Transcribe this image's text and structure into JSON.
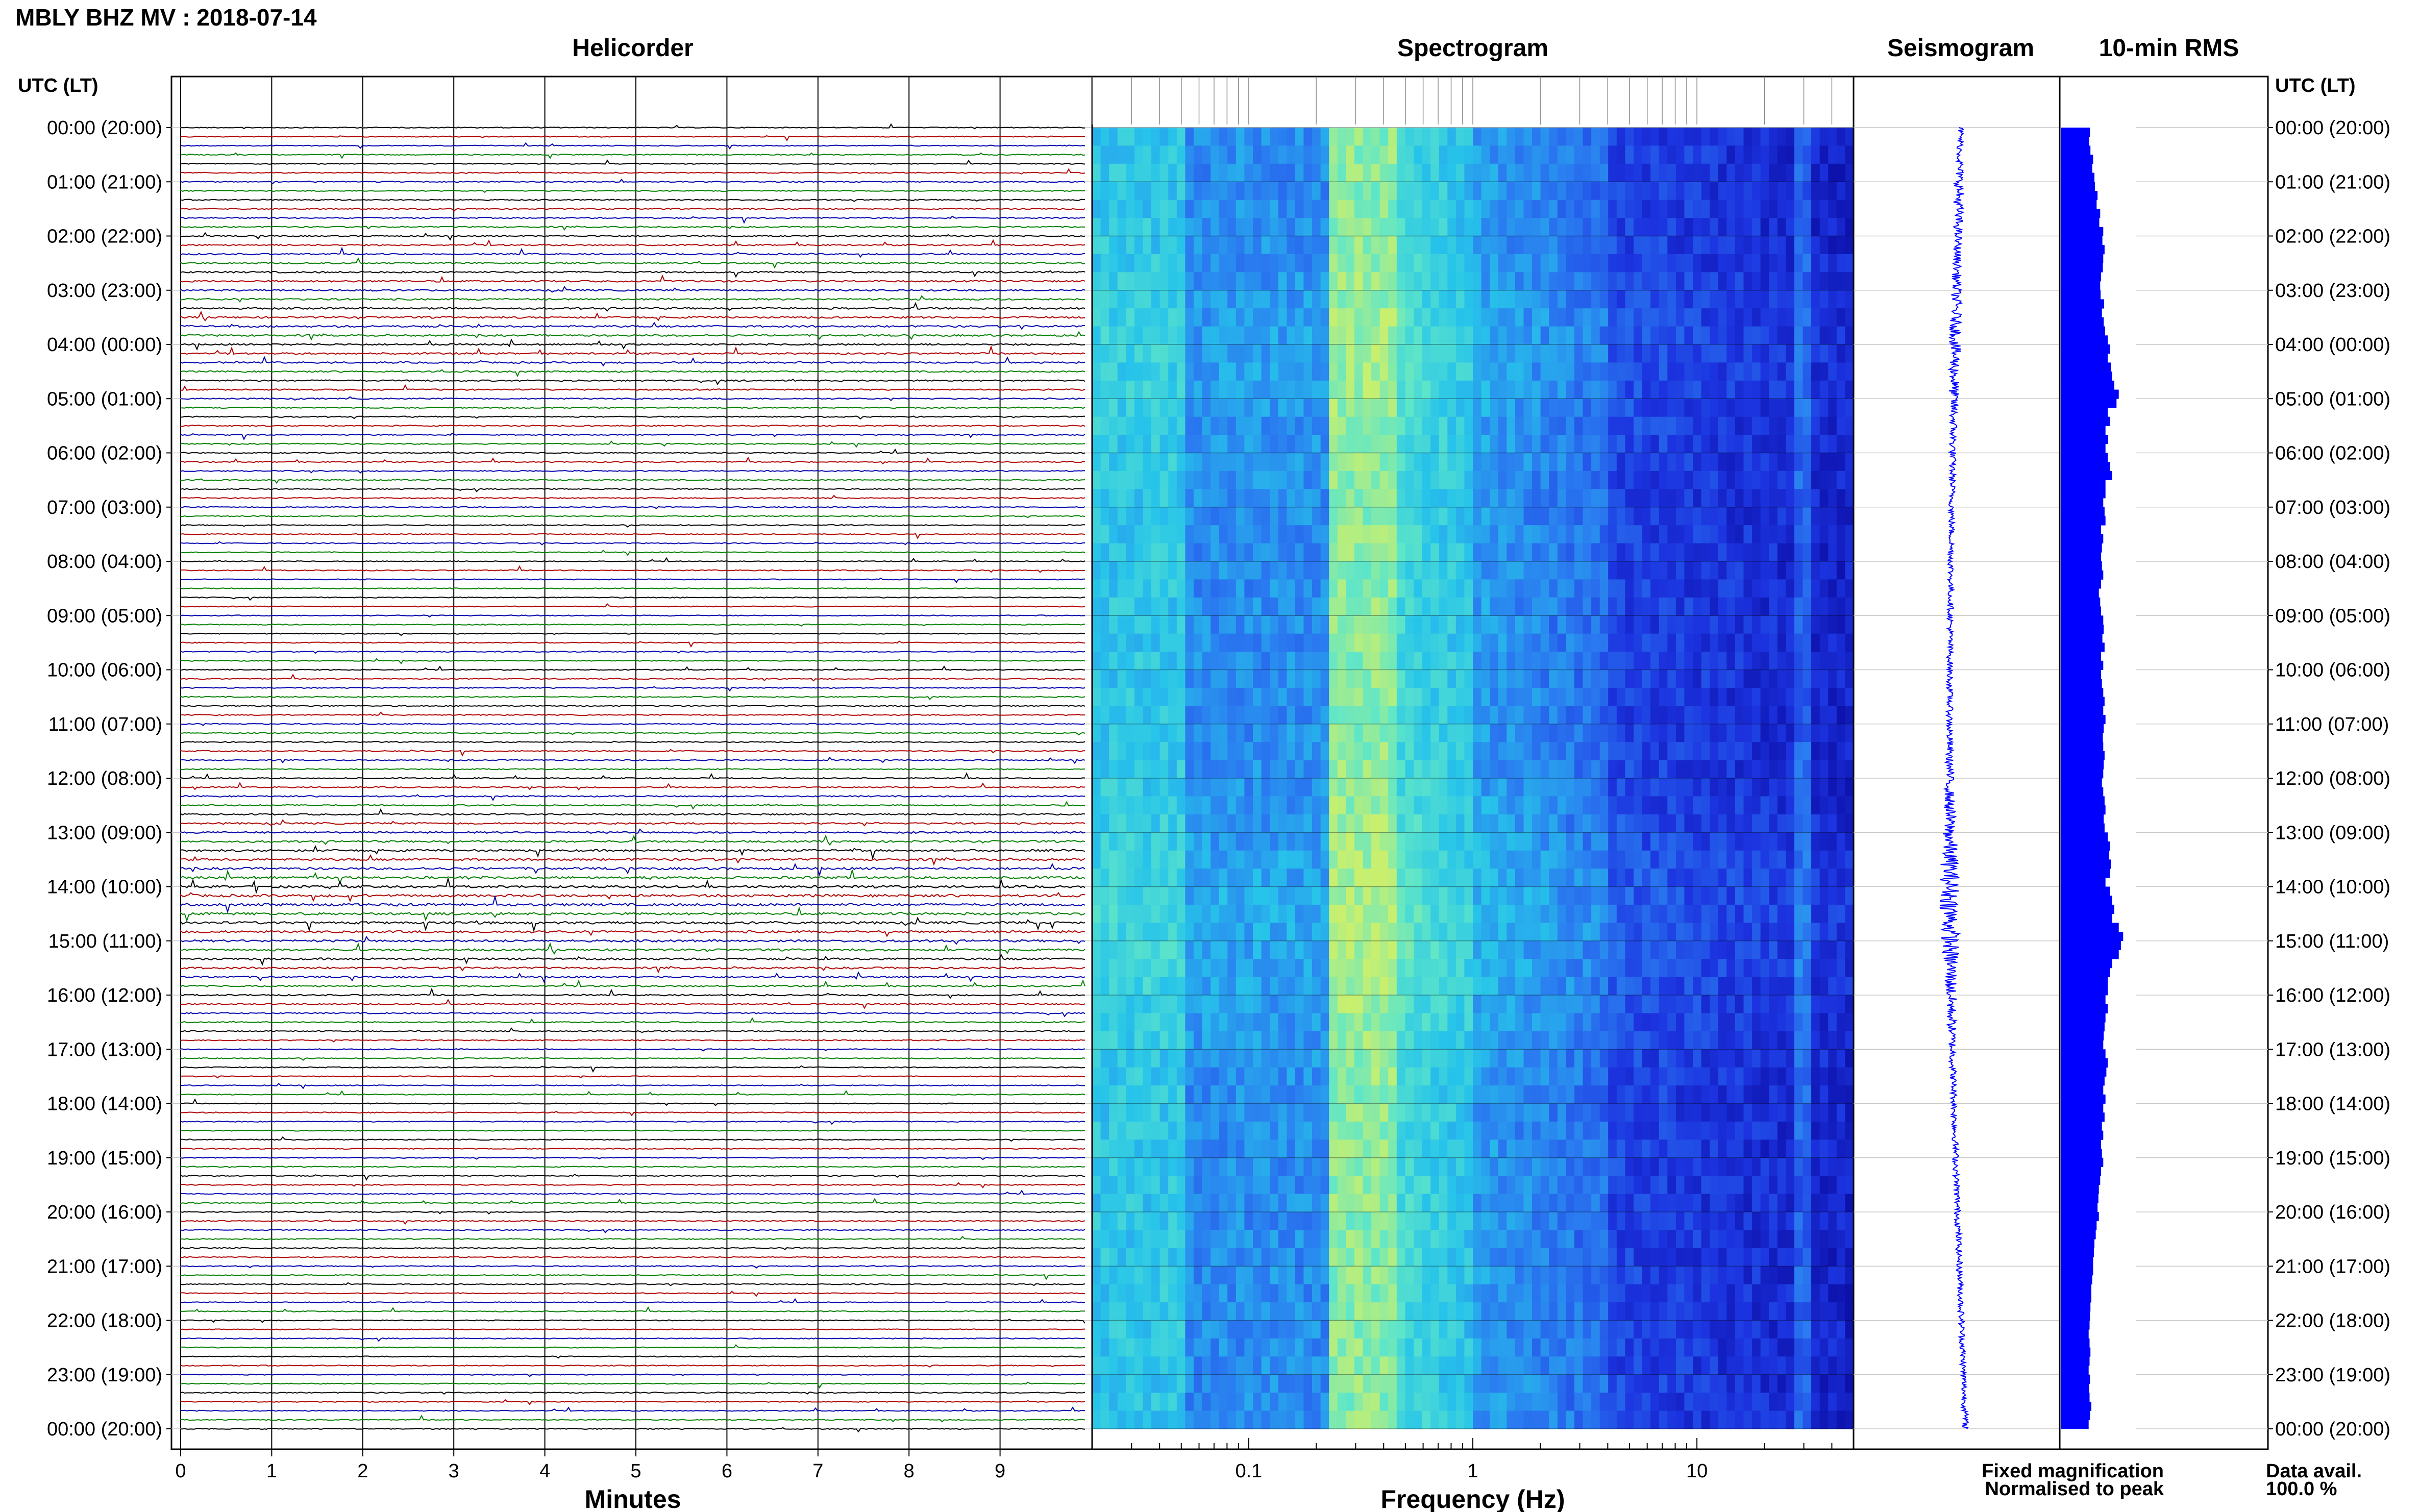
{
  "header": {
    "title": "MBLY BHZ MV : 2018-07-14"
  },
  "panels": {
    "helicorder": "Helicorder",
    "spectrogram": "Spectrogram",
    "seismogram": "Seismogram",
    "rms": "10-min RMS"
  },
  "time_axis_label": "UTC (LT)",
  "time_labels": [
    "00:00 (20:00)",
    "01:00 (21:00)",
    "02:00 (22:00)",
    "03:00 (23:00)",
    "04:00 (00:00)",
    "05:00 (01:00)",
    "06:00 (02:00)",
    "07:00 (03:00)",
    "08:00 (04:00)",
    "09:00 (05:00)",
    "10:00 (06:00)",
    "11:00 (07:00)",
    "12:00 (08:00)",
    "13:00 (09:00)",
    "14:00 (10:00)",
    "15:00 (11:00)",
    "16:00 (12:00)",
    "17:00 (13:00)",
    "18:00 (14:00)",
    "19:00 (15:00)",
    "20:00 (16:00)",
    "21:00 (17:00)",
    "22:00 (18:00)",
    "23:00 (19:00)",
    "00:00 (20:00)"
  ],
  "footer": {
    "fixed_label": "Fixed magnification",
    "normalised_label": "Normalised to peak",
    "data_avail_label": "Data avail.",
    "data_avail_value": "100.0 %"
  },
  "colors": {
    "trace_cycle": [
      "#000000",
      "#b00000",
      "#0000b0",
      "#008000"
    ],
    "seismogram": "#0000ff",
    "rms_bar": "#0000ff",
    "fixed_label": "#0000ff",
    "normalised_label": "#ff0000"
  },
  "chart_data": [
    {
      "type": "line",
      "title": "Helicorder",
      "xlabel": "Minutes",
      "x_ticks": [
        "0",
        "1",
        "2",
        "3",
        "4",
        "5",
        "6",
        "7",
        "8",
        "9"
      ],
      "xlim": [
        0,
        10
      ],
      "rows_per_hour": 6,
      "hours": 24,
      "grid": true
    },
    {
      "type": "heatmap",
      "title": "Spectrogram",
      "xlabel": "Frequency (Hz)",
      "x_ticks": [
        "0.1",
        "1",
        "10"
      ],
      "x_scale": "log",
      "xlim": [
        0.02,
        50
      ],
      "colormap": [
        "#0a0aa0",
        "#1c34e0",
        "#2a7af0",
        "#27c4ea",
        "#5fe6c8",
        "#c9f06e"
      ],
      "peak_band_hz": [
        0.25,
        0.45
      ],
      "secondary_band_hz": 30
    },
    {
      "type": "line",
      "title": "Seismogram"
    },
    {
      "type": "bar",
      "title": "10-min RMS",
      "orientation": "horizontal",
      "values": [
        0.65,
        0.63,
        0.66,
        0.72,
        0.7,
        0.75,
        0.76,
        0.82,
        0.8,
        0.88,
        0.86,
        0.95,
        0.93,
        0.98,
        0.95,
        0.94,
        0.9,
        0.88,
        0.89,
        0.97,
        0.92,
        0.96,
        0.99,
        1.05,
        1.1,
        1.05,
        1.12,
        1.15,
        1.2,
        1.3,
        1.25,
        1.05,
        1.1,
        1.0,
        1.06,
        1.0,
        1.05,
        1.1,
        1.15,
        1.0,
        1.0,
        0.95,
        0.98,
        1.0,
        0.9,
        0.95,
        0.92,
        0.9,
        0.92,
        0.95,
        0.9,
        0.85,
        0.88,
        0.9,
        0.95,
        0.96,
        0.93,
        0.98,
        0.9,
        0.95,
        0.9,
        0.92,
        0.95,
        0.98,
        0.95,
        1.0,
        0.96,
        0.94,
        0.95,
        0.98,
        0.96,
        0.95,
        0.92,
        0.95,
        0.98,
        1.0,
        0.96,
        0.98,
        1.05,
        1.1,
        1.08,
        1.12,
        1.1,
        1.0,
        1.1,
        1.15,
        1.2,
        1.15,
        1.3,
        1.4,
        1.35,
        1.3,
        1.15,
        1.1,
        1.05,
        1.05,
        1.0,
        1.05,
        1.0,
        0.98,
        0.96,
        0.95,
        1.0,
        1.05,
        1.02,
        0.98,
        0.95,
        1.0,
        0.95,
        0.98,
        0.92,
        0.95,
        0.9,
        0.92,
        0.95,
        0.9,
        0.88,
        0.85,
        0.84,
        0.82,
        0.85,
        0.8,
        0.78,
        0.75,
        0.74,
        0.72,
        0.72,
        0.7,
        0.68,
        0.68,
        0.66,
        0.65,
        0.64,
        0.62,
        0.64,
        0.66,
        0.64,
        0.62,
        0.65,
        0.63,
        0.64,
        0.68,
        0.65,
        0.62
      ]
    }
  ]
}
